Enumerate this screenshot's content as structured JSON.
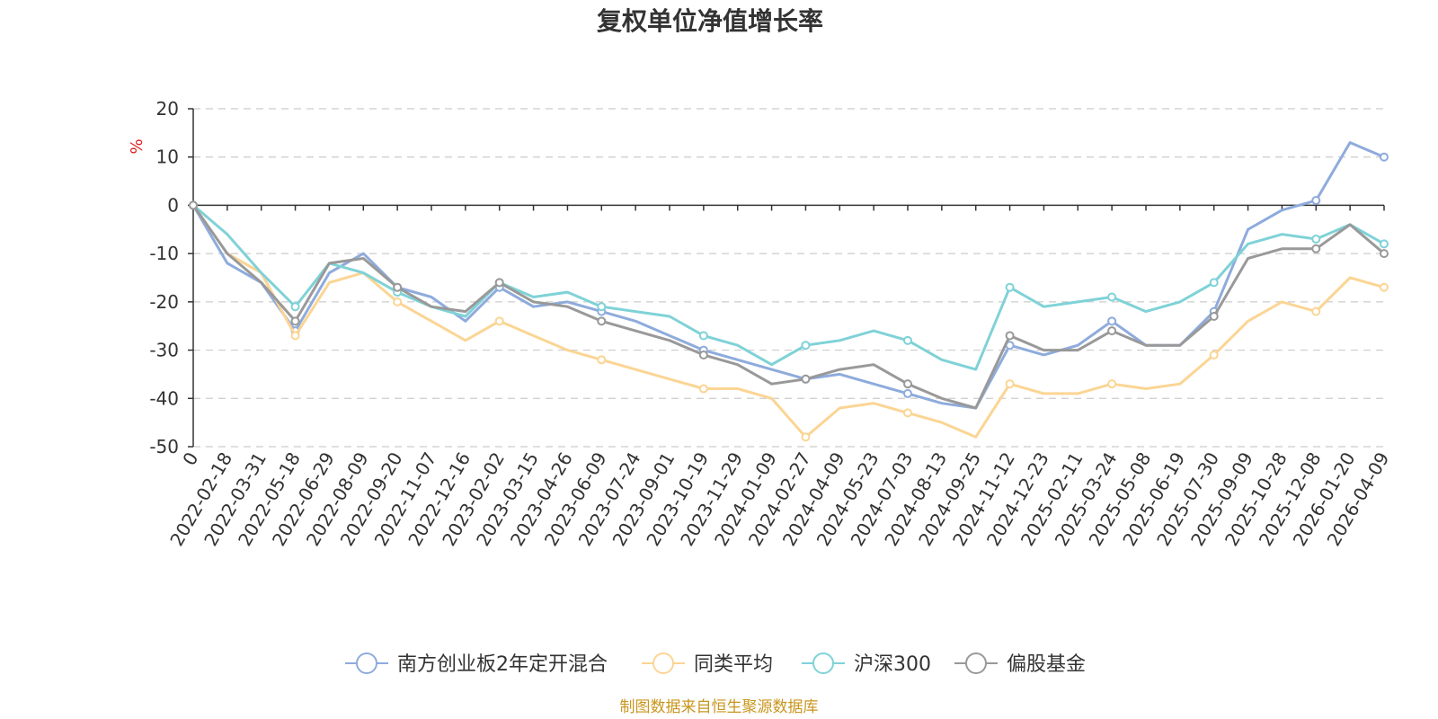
{
  "chart_data": {
    "type": "line",
    "title": "复权单位净值增长率",
    "ylabel": "%",
    "ylim": [
      -50,
      20
    ],
    "yticks": [
      "20",
      "10",
      "0",
      "-10",
      "-20",
      "-30",
      "-40",
      "-50"
    ],
    "categories": [
      "0",
      "2022-02-18",
      "2022-03-31",
      "2022-05-18",
      "2022-06-29",
      "2022-08-09",
      "2022-09-20",
      "2022-11-07",
      "2022-12-16",
      "2023-02-02",
      "2023-03-15",
      "2023-04-26",
      "2023-06-09",
      "2023-07-24",
      "2023-09-01",
      "2023-10-19",
      "2023-11-29",
      "2024-01-09",
      "2024-02-27",
      "2024-04-09",
      "2024-05-23",
      "2024-07-03",
      "2024-08-13",
      "2024-09-25",
      "2024-11-12",
      "2024-12-23",
      "2025-02-11",
      "2025-03-24",
      "2025-05-08",
      "2025-06-19",
      "2025-07-30",
      "2025-09-09",
      "2025-10-28",
      "2025-12-08",
      "2026-01-20",
      "2026-04-09"
    ],
    "series": [
      {
        "name": "南方创业板2年定开混合",
        "color": "#8eabdc",
        "values": [
          0,
          -12,
          -16,
          -26,
          -14,
          -10,
          -17,
          -19,
          -24,
          -17,
          -21,
          -20,
          -22,
          -24,
          -27,
          -30,
          -32,
          -34,
          -36,
          -35,
          -37,
          -39,
          -41,
          -42,
          -29,
          -31,
          -29,
          -24,
          -29,
          -29,
          -22,
          -5,
          -1,
          1,
          13,
          10
        ]
      },
      {
        "name": "同类平均",
        "color": "#fbd594",
        "values": [
          0,
          -10,
          -14,
          -27,
          -16,
          -14,
          -20,
          -24,
          -28,
          -24,
          -27,
          -30,
          -32,
          -34,
          -36,
          -38,
          -38,
          -40,
          -48,
          -42,
          -41,
          -43,
          -45,
          -48,
          -37,
          -39,
          -39,
          -37,
          -38,
          -37,
          -31,
          -24,
          -20,
          -22,
          -15,
          -17
        ]
      },
      {
        "name": "沪深300",
        "color": "#7fd2d7",
        "values": [
          0,
          -6,
          -14,
          -21,
          -12,
          -14,
          -18,
          -21,
          -23,
          -16,
          -19,
          -18,
          -21,
          -22,
          -23,
          -27,
          -29,
          -33,
          -29,
          -28,
          -26,
          -28,
          -32,
          -34,
          -17,
          -21,
          -20,
          -19,
          -22,
          -20,
          -16,
          -8,
          -6,
          -7,
          -4,
          -8
        ]
      },
      {
        "name": "偏股基金",
        "color": "#999999",
        "values": [
          0,
          -10,
          -16,
          -24,
          -12,
          -11,
          -17,
          -21,
          -22,
          -16,
          -20,
          -21,
          -24,
          -26,
          -28,
          -31,
          -33,
          -37,
          -36,
          -34,
          -33,
          -37,
          -40,
          -42,
          -27,
          -30,
          -30,
          -26,
          -29,
          -29,
          -23,
          -11,
          -9,
          -9,
          -4,
          -10
        ]
      }
    ]
  },
  "source_text": "制图数据来自恒生聚源数据库"
}
